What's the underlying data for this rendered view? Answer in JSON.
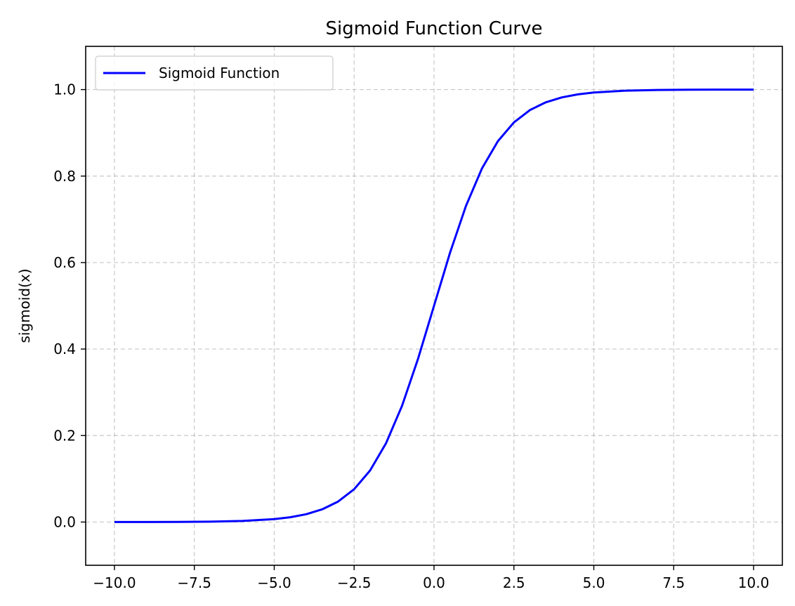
{
  "chart_data": {
    "type": "line",
    "title": "Sigmoid Function Curve",
    "xlabel": "",
    "ylabel": "sigmoid(x)",
    "xlim": [
      -10.9,
      10.9
    ],
    "ylim": [
      -0.1,
      1.1
    ],
    "x_ticks": [
      -10.0,
      -7.5,
      -5.0,
      -2.5,
      0.0,
      2.5,
      5.0,
      7.5,
      10.0
    ],
    "x_tick_labels": [
      "−10.0",
      "−7.5",
      "−5.0",
      "−2.5",
      "0.0",
      "2.5",
      "5.0",
      "7.5",
      "10.0"
    ],
    "y_ticks": [
      0.0,
      0.2,
      0.4,
      0.6,
      0.8,
      1.0
    ],
    "y_tick_labels": [
      "0.0",
      "0.2",
      "0.4",
      "0.6",
      "0.8",
      "1.0"
    ],
    "grid": true,
    "grid_style": "dashed",
    "legend_position": "top-left",
    "series": [
      {
        "name": "Sigmoid Function",
        "color": "#0000ff",
        "x": [
          -10,
          -9,
          -8,
          -7,
          -6,
          -5,
          -4.5,
          -4,
          -3.5,
          -3,
          -2.5,
          -2,
          -1.5,
          -1,
          -0.5,
          0,
          0.5,
          1,
          1.5,
          2,
          2.5,
          3,
          3.5,
          4,
          4.5,
          5,
          6,
          7,
          8,
          9,
          10
        ],
        "y": [
          0.0,
          0.0001,
          0.0003,
          0.0009,
          0.0025,
          0.0067,
          0.011,
          0.018,
          0.0293,
          0.0474,
          0.0759,
          0.1192,
          0.1824,
          0.2689,
          0.3775,
          0.5,
          0.6225,
          0.7311,
          0.8176,
          0.8808,
          0.9241,
          0.9526,
          0.9707,
          0.982,
          0.989,
          0.9933,
          0.9975,
          0.9991,
          0.9997,
          0.9999,
          1.0
        ]
      }
    ]
  }
}
